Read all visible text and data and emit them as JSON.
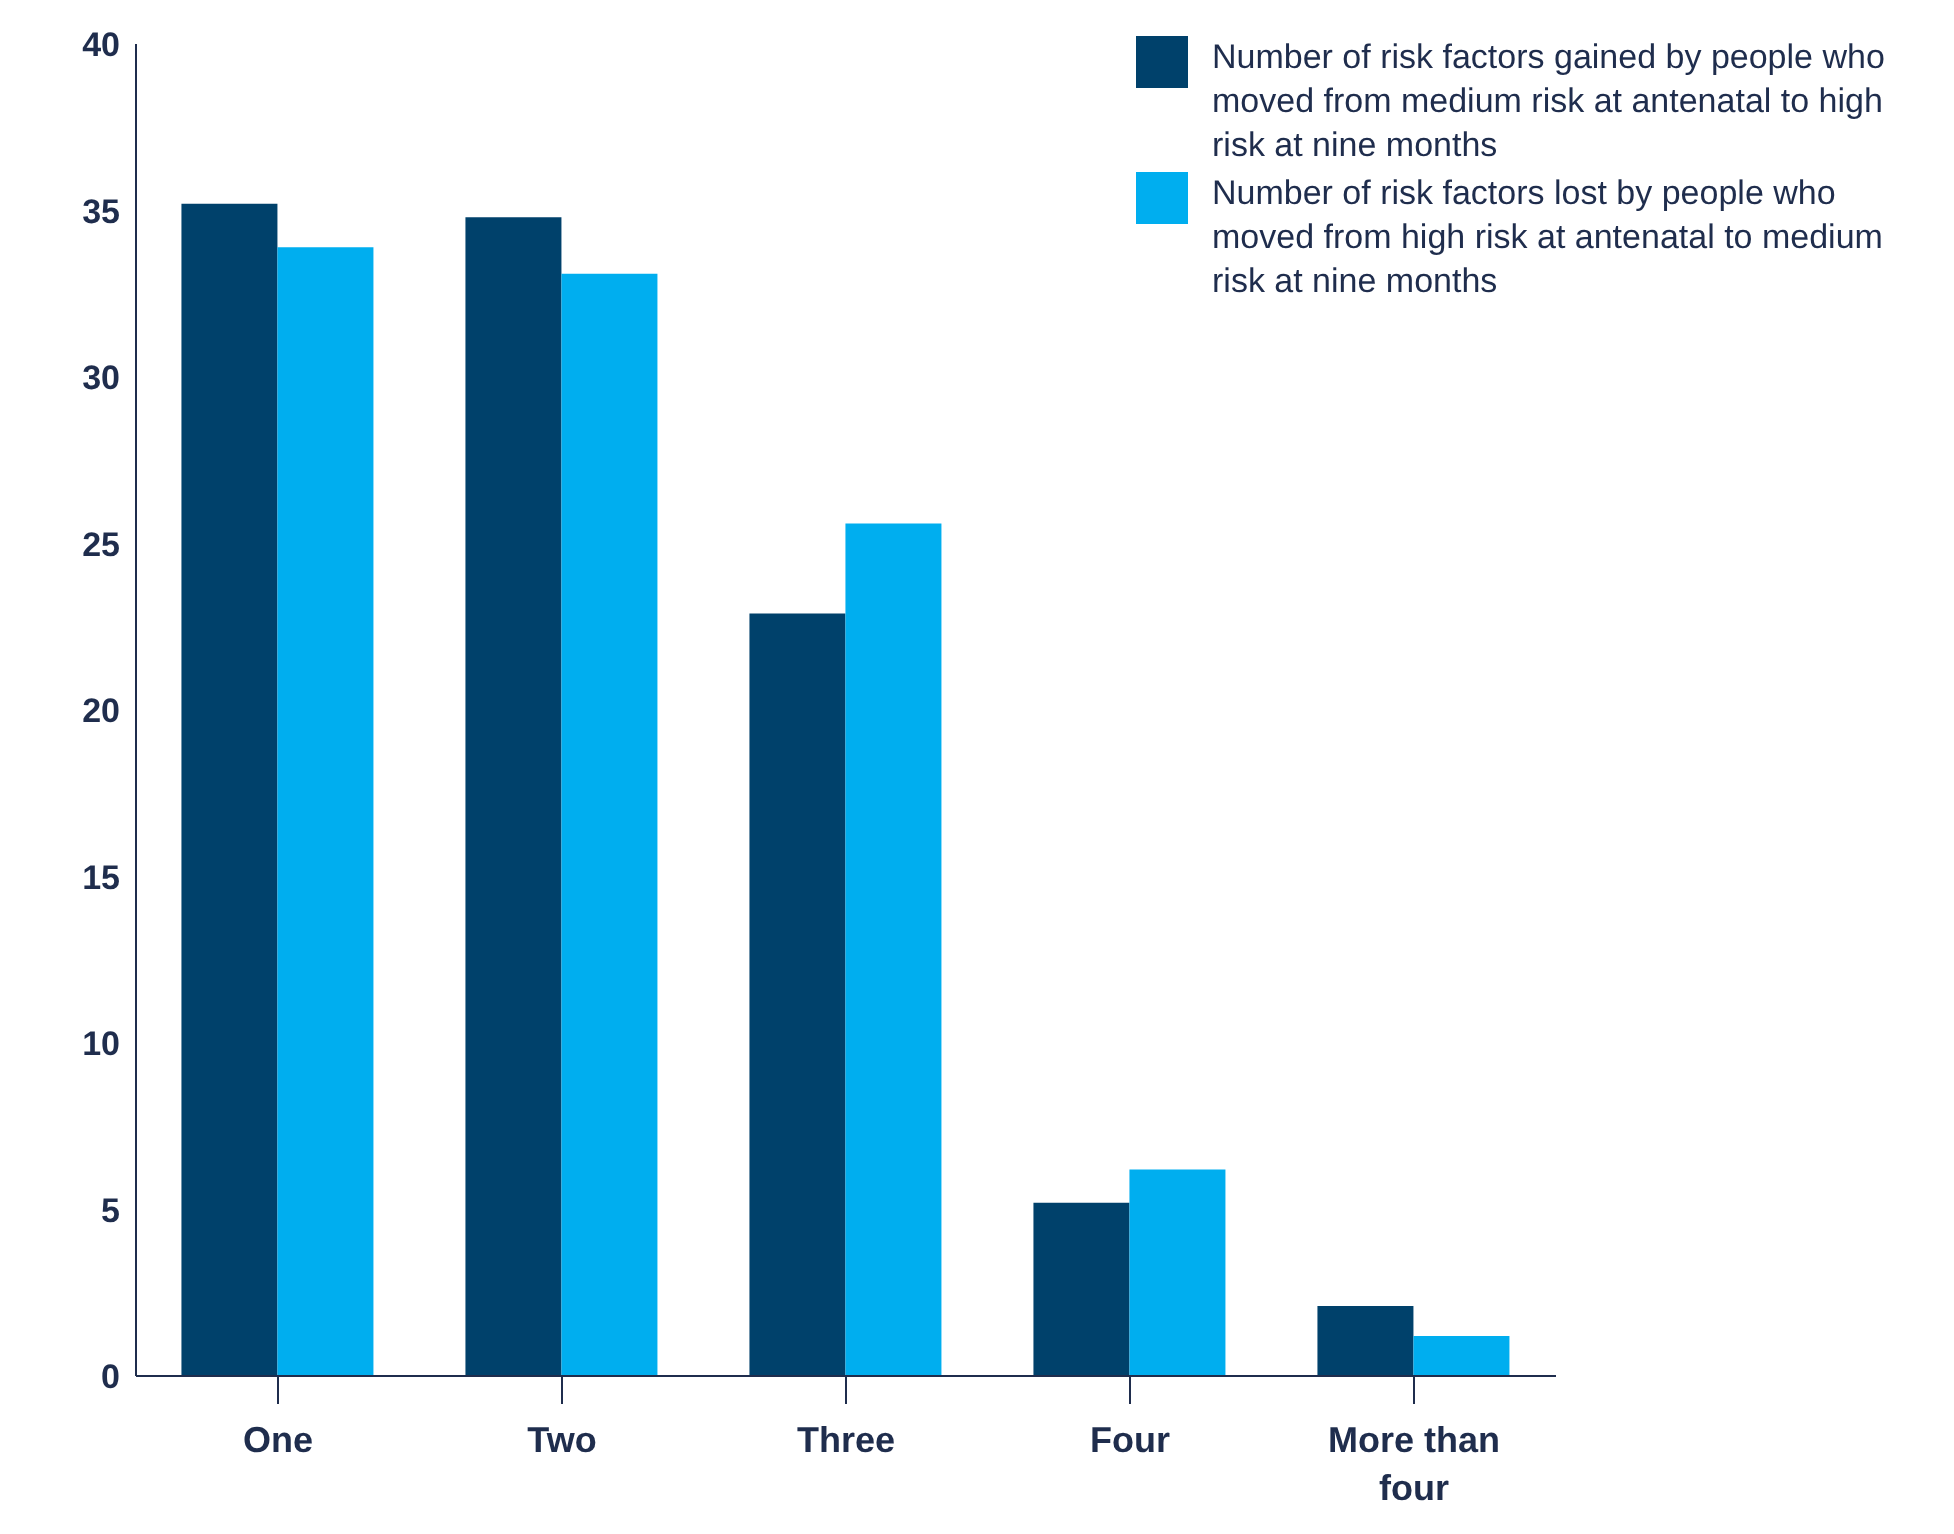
{
  "chart_data": {
    "type": "bar",
    "categories": [
      "One",
      "Two",
      "Three",
      "Four",
      "More than four"
    ],
    "series": [
      {
        "name": "Number of risk factors gained by people who moved from medium risk at antenatal to high risk at nine months",
        "color": "#00416b",
        "values": [
          35.2,
          34.8,
          22.9,
          5.2,
          2.1
        ]
      },
      {
        "name": "Number of risk factors lost by people who moved from high risk at antenatal to medium risk at nine months",
        "color": "#00aeef",
        "values": [
          33.9,
          33.1,
          25.6,
          6.2,
          1.2
        ]
      }
    ],
    "ylim": [
      0,
      40
    ],
    "yticks": [
      0,
      5,
      10,
      15,
      20,
      25,
      30,
      35,
      40
    ],
    "grid": false,
    "legend": "top right"
  }
}
